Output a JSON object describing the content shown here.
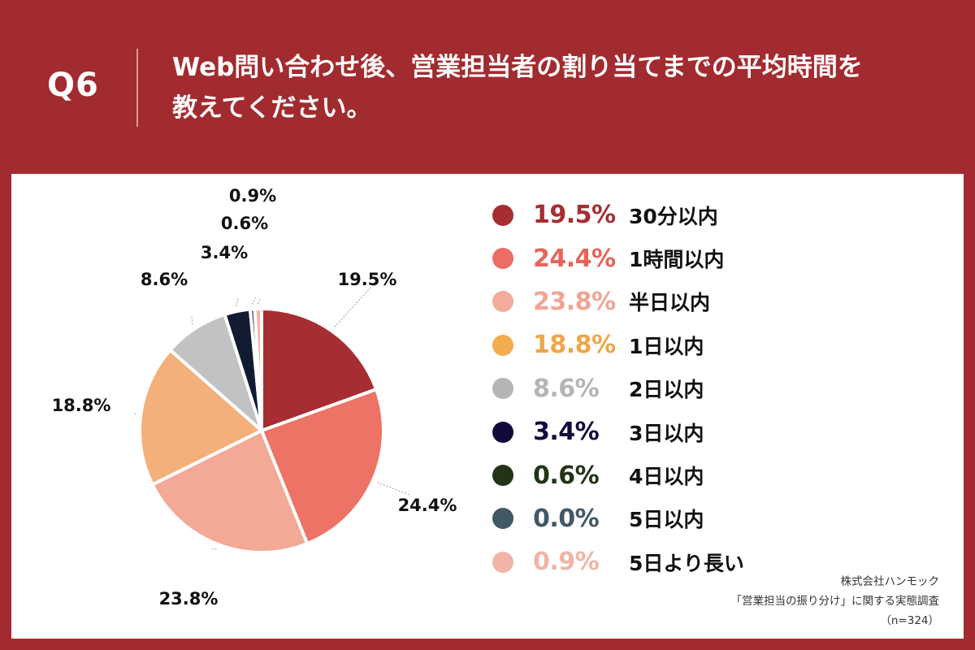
{
  "header": {
    "question_number": "Q6",
    "title_line1": "Web問い合わせ後、営業担当者の割り当てまでの平均時間を",
    "title_line2": "教えてください。"
  },
  "chart_data": {
    "type": "pie",
    "title": "",
    "slices": [
      {
        "label": "30分以内",
        "value": 19.5,
        "display": "19.5%",
        "color": "#a62d31"
      },
      {
        "label": "1時間以内",
        "value": 24.4,
        "display": "24.4%",
        "color": "#ec7365"
      },
      {
        "label": "半日以内",
        "value": 23.8,
        "display": "23.8%",
        "color": "#f2a996"
      },
      {
        "label": "1日以内",
        "value": 18.8,
        "display": "18.8%",
        "color": "#f3b07a"
      },
      {
        "label": "2日以内",
        "value": 8.6,
        "display": "8.6%",
        "color": "#c2c2c2"
      },
      {
        "label": "3日以内",
        "value": 3.4,
        "display": "3.4%",
        "color": "#111c33"
      },
      {
        "label": "4日以内",
        "value": 0.6,
        "display": "0.6%",
        "color": "#3f4b55"
      },
      {
        "label": "5日以内",
        "value": 0.0,
        "display": "0.0%",
        "color": "#455a6b"
      },
      {
        "label": "5日より長い",
        "value": 0.9,
        "display": "0.9%",
        "color": "#f2b4a8"
      }
    ],
    "legend": [
      {
        "pct": "19.5%",
        "label": "30分以内",
        "dot_color": "#a62d31",
        "text_color": "#a62d31"
      },
      {
        "pct": "24.4%",
        "label": "1時間以内",
        "dot_color": "#ec6d63",
        "text_color": "#e7645a"
      },
      {
        "pct": "23.8%",
        "label": "半日以内",
        "dot_color": "#f4ac9a",
        "text_color": "#f0a594"
      },
      {
        "pct": "18.8%",
        "label": "1日以内",
        "dot_color": "#f2ad4f",
        "text_color": "#eea746"
      },
      {
        "pct": "8.6%",
        "label": "2日以内",
        "dot_color": "#b5b5b5",
        "text_color": "#b5b5b5"
      },
      {
        "pct": "3.4%",
        "label": "3日以内",
        "dot_color": "#110a3b",
        "text_color": "#110a3b"
      },
      {
        "pct": "0.6%",
        "label": "4日以内",
        "dot_color": "#233317",
        "text_color": "#233317"
      },
      {
        "pct": "0.0%",
        "label": "5日以内",
        "dot_color": "#435866",
        "text_color": "#435866"
      },
      {
        "pct": "0.9%",
        "label": "5日より長い",
        "dot_color": "#f2b4a8",
        "text_color": "#f2b4a8"
      }
    ],
    "legend_placement": "right"
  },
  "source": {
    "line1": "株式会社ハンモック",
    "line2": "「営業担当の振り分け」に関する実態調査",
    "line3": "（n=324）"
  }
}
